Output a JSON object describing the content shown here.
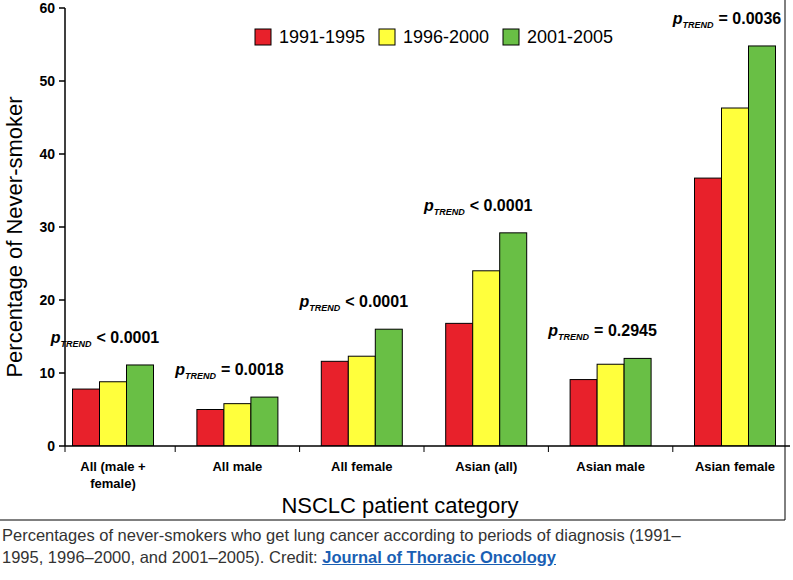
{
  "chart_data": {
    "type": "bar",
    "x_label": "NSCLC patient category",
    "y_label": "Percentage of Never-smoker",
    "categories": [
      "All (male + female)",
      "All male",
      "All female",
      "Asian (all)",
      "Asian male",
      "Asian female"
    ],
    "series": [
      {
        "name": "1991-1995",
        "color": "#e8212b",
        "values": [
          7.8,
          5.0,
          11.6,
          16.8,
          9.1,
          36.7
        ]
      },
      {
        "name": "1996-2000",
        "color": "#ffff3c",
        "values": [
          8.8,
          5.8,
          12.3,
          24.0,
          11.2,
          46.3
        ]
      },
      {
        "name": "2001-2005",
        "color": "#69bf45",
        "values": [
          11.1,
          6.7,
          16.0,
          29.2,
          12.0,
          54.8
        ]
      }
    ],
    "p_label": "p",
    "p_subscript": "TREND",
    "p_trend": [
      "< 0.0001",
      "= 0.0018",
      "< 0.0001",
      "< 0.0001",
      "= 0.2945",
      "= 0.0036"
    ],
    "ylim": [
      0,
      60
    ],
    "yticks": [
      0,
      10,
      20,
      30,
      40,
      50,
      60
    ],
    "grid": false,
    "legend": "top",
    "data_labels": false,
    "caption": "Percentages of never-smokers who get lung cancer according to periods of diagnosis (1991–1995, 1996–2000, and 2001–2005).",
    "credit_label": "Credit:",
    "credit": "Journal of Thoracic Oncology"
  }
}
